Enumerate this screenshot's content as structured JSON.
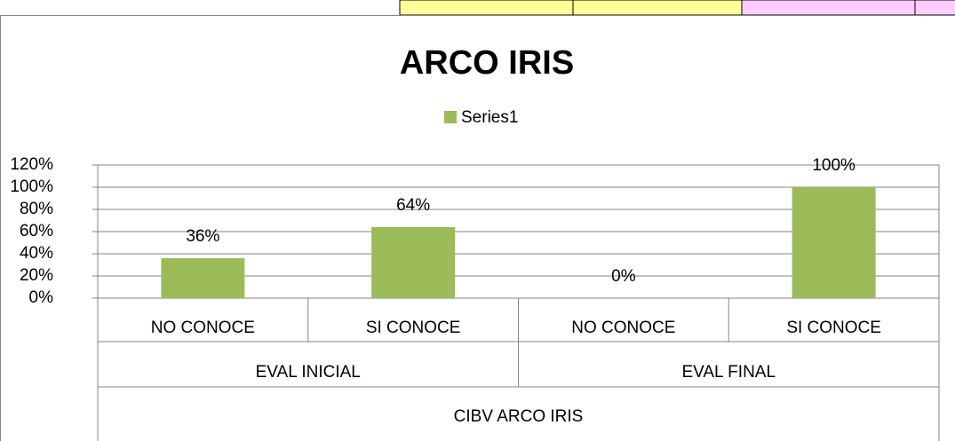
{
  "chart_data": {
    "type": "bar",
    "title": "ARCO IRIS",
    "categories": [
      "NO CONOCE",
      "SI CONOCE",
      "NO CONOCE",
      "SI CONOCE"
    ],
    "groups": [
      "EVAL INICIAL",
      "EVAL FINAL"
    ],
    "supergroup": "CIBV ARCO IRIS",
    "series": [
      {
        "name": "Series1",
        "color": "#9bbb59",
        "values": [
          36,
          64,
          0,
          100
        ],
        "value_labels": [
          "36%",
          "64%",
          "0%",
          "100%"
        ]
      }
    ],
    "ylim": [
      0,
      120
    ],
    "yticks": [
      {
        "value": 0,
        "label": "0%"
      },
      {
        "value": 20,
        "label": "20%"
      },
      {
        "value": 40,
        "label": "40%"
      },
      {
        "value": 60,
        "label": "60%"
      },
      {
        "value": 80,
        "label": "80%"
      },
      {
        "value": 100,
        "label": "100%"
      },
      {
        "value": 120,
        "label": "120%"
      }
    ],
    "grid": true,
    "legend": "top"
  }
}
